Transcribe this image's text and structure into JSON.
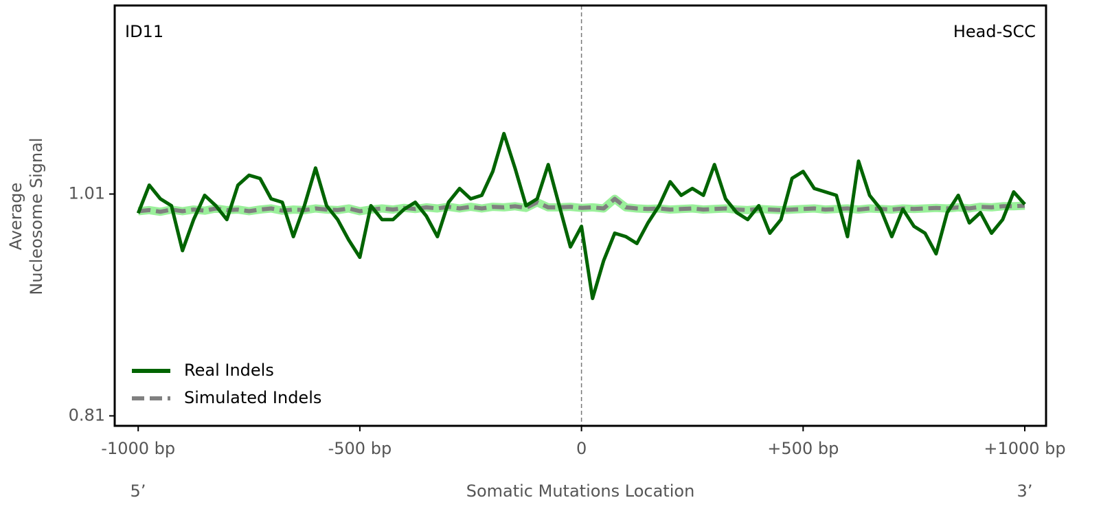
{
  "chart_data": {
    "type": "line",
    "annotations": {
      "left_label": "ID11",
      "right_label": "Head-SCC",
      "five_prime": "5’",
      "three_prime": "3’"
    },
    "xlabel": "Somatic Mutations Location",
    "ylabel": [
      "Average",
      "Nucleosome Signal"
    ],
    "x": [
      -1000,
      -975,
      -950,
      -925,
      -900,
      -875,
      -850,
      -825,
      -800,
      -775,
      -750,
      -725,
      -700,
      -675,
      -650,
      -625,
      -600,
      -575,
      -550,
      -525,
      -500,
      -475,
      -450,
      -425,
      -400,
      -375,
      -350,
      -325,
      -300,
      -275,
      -250,
      -225,
      -200,
      -175,
      -150,
      -125,
      -100,
      -75,
      -50,
      -25,
      0,
      25,
      50,
      75,
      100,
      125,
      150,
      175,
      200,
      225,
      250,
      275,
      300,
      325,
      350,
      375,
      400,
      425,
      450,
      475,
      500,
      525,
      550,
      575,
      600,
      625,
      650,
      675,
      700,
      725,
      750,
      775,
      800,
      825,
      850,
      875,
      900,
      925,
      950,
      975,
      1000
    ],
    "series": [
      {
        "name": "Real Indels",
        "color": "#006400",
        "dash": false,
        "values": [
          0.9927,
          1.018,
          1.0057,
          0.9995,
          0.959,
          0.987,
          1.0088,
          0.9995,
          0.987,
          1.018,
          1.027,
          1.024,
          1.0057,
          1.0026,
          0.9716,
          0.9995,
          1.0335,
          0.9995,
          0.987,
          0.9685,
          0.953,
          0.9995,
          0.987,
          0.987,
          0.9964,
          1.0026,
          0.9902,
          0.9716,
          1.0026,
          1.015,
          1.0057,
          1.0088,
          1.0304,
          1.0645,
          1.0335,
          0.9995,
          1.0057,
          1.0366,
          0.9995,
          0.9623,
          0.9809,
          0.9159,
          0.95,
          0.9747,
          0.9716,
          0.9654,
          0.984,
          0.9995,
          1.0211,
          1.0088,
          1.015,
          1.0088,
          1.0366,
          1.0057,
          0.9933,
          0.987,
          0.9995,
          0.9747,
          0.987,
          1.0242,
          1.0304,
          1.015,
          1.0119,
          1.0088,
          0.9716,
          1.0397,
          1.0088,
          0.9964,
          0.9716,
          0.9964,
          0.9809,
          0.9747,
          0.9561,
          0.9933,
          1.0088,
          0.984,
          0.9933,
          0.9747,
          0.987,
          1.0119,
          1.0008
        ]
      },
      {
        "name": "Simulated Indels",
        "color": "#808080",
        "dash": true,
        "halo": "#90ee90",
        "values": [
          0.9945,
          0.9955,
          0.994,
          0.996,
          0.9945,
          0.996,
          0.995,
          0.997,
          0.9955,
          0.996,
          0.9945,
          0.996,
          0.997,
          0.995,
          0.996,
          0.9955,
          0.997,
          0.996,
          0.9955,
          0.997,
          0.9945,
          0.996,
          0.997,
          0.996,
          0.9975,
          0.9965,
          0.998,
          0.997,
          0.9985,
          0.997,
          0.9985,
          0.997,
          0.9985,
          0.998,
          0.999,
          0.9975,
          1.0026,
          0.998,
          0.998,
          0.9985,
          0.9975,
          0.998,
          0.997,
          1.0057,
          0.998,
          0.997,
          0.9965,
          0.997,
          0.996,
          0.9965,
          0.997,
          0.996,
          0.9965,
          0.997,
          0.996,
          0.9955,
          0.9965,
          0.996,
          0.9955,
          0.996,
          0.9965,
          0.997,
          0.996,
          0.9965,
          0.997,
          0.996,
          0.997,
          0.9965,
          0.996,
          0.997,
          0.9965,
          0.997,
          0.9975,
          0.997,
          0.998,
          0.997,
          0.9985,
          0.998,
          0.999,
          0.999,
          0.9995
        ]
      }
    ],
    "xlim": [
      -1053,
      1048
    ],
    "ylim": [
      0.801,
      1.18
    ],
    "xticks": [
      {
        "value": -1000,
        "label": "-1000 bp"
      },
      {
        "value": -500,
        "label": "-500 bp"
      },
      0,
      {
        "value": 500,
        "label": "+500 bp"
      },
      {
        "value": 1000,
        "label": "+1000 bp"
      }
    ],
    "yticks": [
      0.81,
      1.01
    ],
    "vline": 0,
    "legend": "lower left"
  }
}
